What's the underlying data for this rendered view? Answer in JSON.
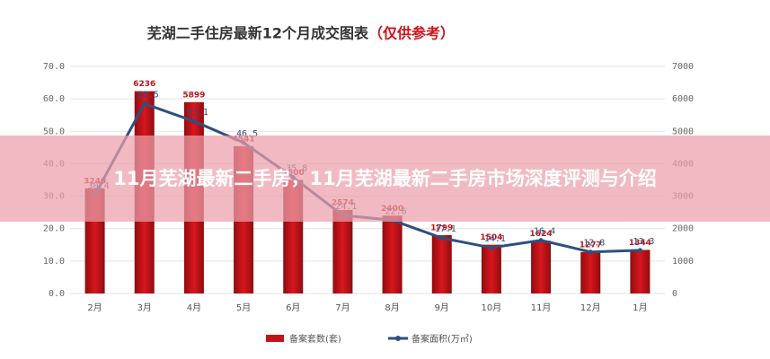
{
  "chart_data": {
    "type": "bar-line",
    "title": "芜湖二手住房最新12个月成交图表",
    "title_note": "（仅供参考）",
    "categories": [
      "2月",
      "3月",
      "4月",
      "5月",
      "6月",
      "7月",
      "8月",
      "9月",
      "10月",
      "11月",
      "12月",
      "1月"
    ],
    "series": [
      {
        "name": "备案套数(套)",
        "type": "bar",
        "axis": "y2",
        "color": "#c0141b",
        "values": [
          3240,
          6236,
          5899,
          4541,
          3500,
          2574,
          2400,
          1799,
          1504,
          1624,
          1277,
          1344
        ]
      },
      {
        "name": "备案面积(万㎡)",
        "type": "line",
        "axis": "y",
        "color": "#2f4f7f",
        "values": [
          30.4,
          58.5,
          53.1,
          46.5,
          35.8,
          24.1,
          22.6,
          17.1,
          14.1,
          16.4,
          12.8,
          13.3
        ]
      }
    ],
    "ylim": [
      0,
      70
    ],
    "yticks": [
      {
        "value": 0,
        "label": "0.0"
      },
      {
        "value": 10,
        "label": "10.0"
      },
      {
        "value": 20,
        "label": "20.0"
      },
      {
        "value": 30,
        "label": "30.0"
      },
      {
        "value": 40,
        "label": "40.0"
      },
      {
        "value": 50,
        "label": "50.0"
      },
      {
        "value": 60,
        "label": "60.0"
      },
      {
        "value": 70,
        "label": "70.0"
      }
    ],
    "y2lim": [
      0,
      7000
    ],
    "y2ticks": [
      0,
      1000,
      2000,
      3000,
      4000,
      5000,
      6000,
      7000
    ]
  },
  "banner": {
    "text": "11月芜湖最新二手房，11月芜湖最新二手房市场深度评测与介绍"
  }
}
